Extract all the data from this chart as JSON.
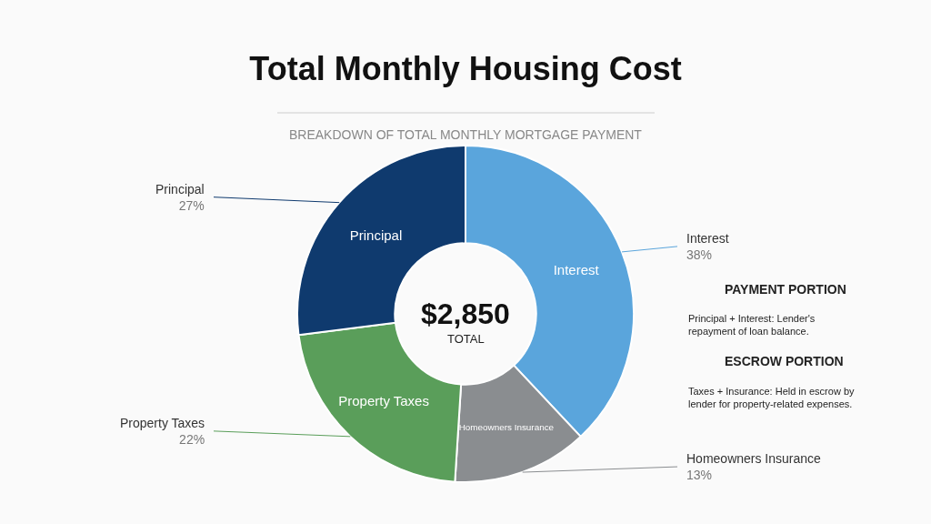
{
  "chart_data": {
    "type": "donut",
    "title": "Total Monthly Housing Cost",
    "subtitle": "BREAKDOWN OF TOTAL MONTHLY MORTGAGE PAYMENT",
    "categories": [
      "Interest",
      "Homeowners Insurance",
      "Property Taxes",
      "Principal"
    ],
    "values": [
      38,
      13,
      22,
      27
    ],
    "value_labels": [
      "38%",
      "13%",
      "22%",
      "27%"
    ],
    "colors": [
      "#5aa5dc",
      "#8a8d90",
      "#5a9e5a",
      "#0f3a6e"
    ],
    "annotations": [
      "$2,850",
      "TOTAL",
      "PAYMENT PORTION",
      "Principal + Interest: Lender's\nrepayment of loan balance.",
      "ESCROW PORTION",
      "Taxes + Insurance: Held in escrow by\nlender for property-related expenses."
    ]
  }
}
